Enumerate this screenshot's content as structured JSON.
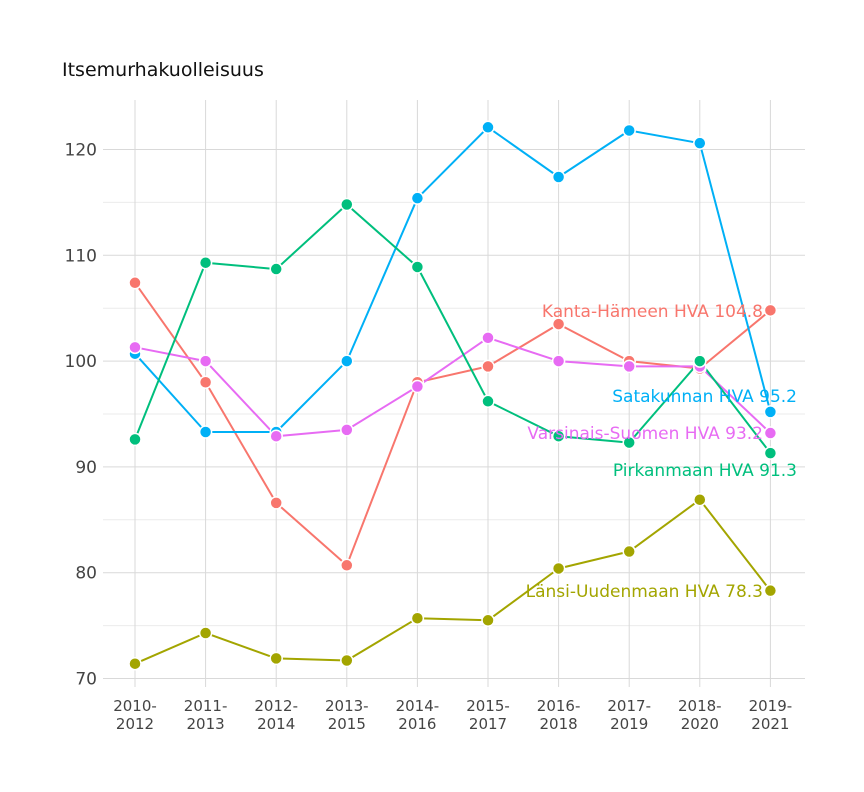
{
  "chart_data": {
    "type": "line",
    "title": "Itsemurhakuolleisuus",
    "xlabel": "",
    "ylabel": "",
    "ylim": [
      69,
      124
    ],
    "yticks": [
      70,
      80,
      90,
      100,
      110,
      120
    ],
    "categories": [
      "2010-2012",
      "2011-2013",
      "2012-2014",
      "2013-2015",
      "2014-2016",
      "2015-2017",
      "2016-2018",
      "2017-2019",
      "2018-2020",
      "2019-2021"
    ],
    "category_lines": [
      [
        "2010-",
        "2012"
      ],
      [
        "2011-",
        "2013"
      ],
      [
        "2012-",
        "2014"
      ],
      [
        "2013-",
        "2015"
      ],
      [
        "2014-",
        "2016"
      ],
      [
        "2015-",
        "2017"
      ],
      [
        "2016-",
        "2018"
      ],
      [
        "2017-",
        "2019"
      ],
      [
        "2018-",
        "2020"
      ],
      [
        "2019-",
        "2021"
      ]
    ],
    "grid": true,
    "legend": "end-of-line labels",
    "series": [
      {
        "key": "kanta",
        "name": "Kanta-Hämeen HVA 104.8",
        "color": "#F8766D",
        "values": [
          107.4,
          98.0,
          86.6,
          80.7,
          98.0,
          99.5,
          103.5,
          100.0,
          99.3,
          104.8
        ]
      },
      {
        "key": "satakunta",
        "name": "Satakunnan HVA 95.2",
        "color": "#00B0F6",
        "values": [
          100.7,
          93.3,
          93.3,
          100.0,
          115.4,
          122.1,
          117.4,
          121.8,
          120.6,
          95.2
        ]
      },
      {
        "key": "varsinais",
        "name": "Varsinais-Suomen HVA 93.2",
        "color": "#E76BF3",
        "values": [
          101.3,
          100.0,
          92.9,
          93.5,
          97.6,
          102.2,
          100.0,
          99.5,
          99.5,
          93.2
        ]
      },
      {
        "key": "pirkanmaa",
        "name": "Pirkanmaan HVA 91.3",
        "color": "#00BF7D",
        "values": [
          92.6,
          109.3,
          108.7,
          114.8,
          108.9,
          96.2,
          92.9,
          92.3,
          100.0,
          91.3
        ]
      },
      {
        "key": "lansi",
        "name": "Länsi-Uudenmaan HVA 78.3",
        "color": "#A3A500",
        "values": [
          71.4,
          74.3,
          71.9,
          71.7,
          75.7,
          75.5,
          80.4,
          82.0,
          86.9,
          78.3
        ]
      }
    ]
  }
}
